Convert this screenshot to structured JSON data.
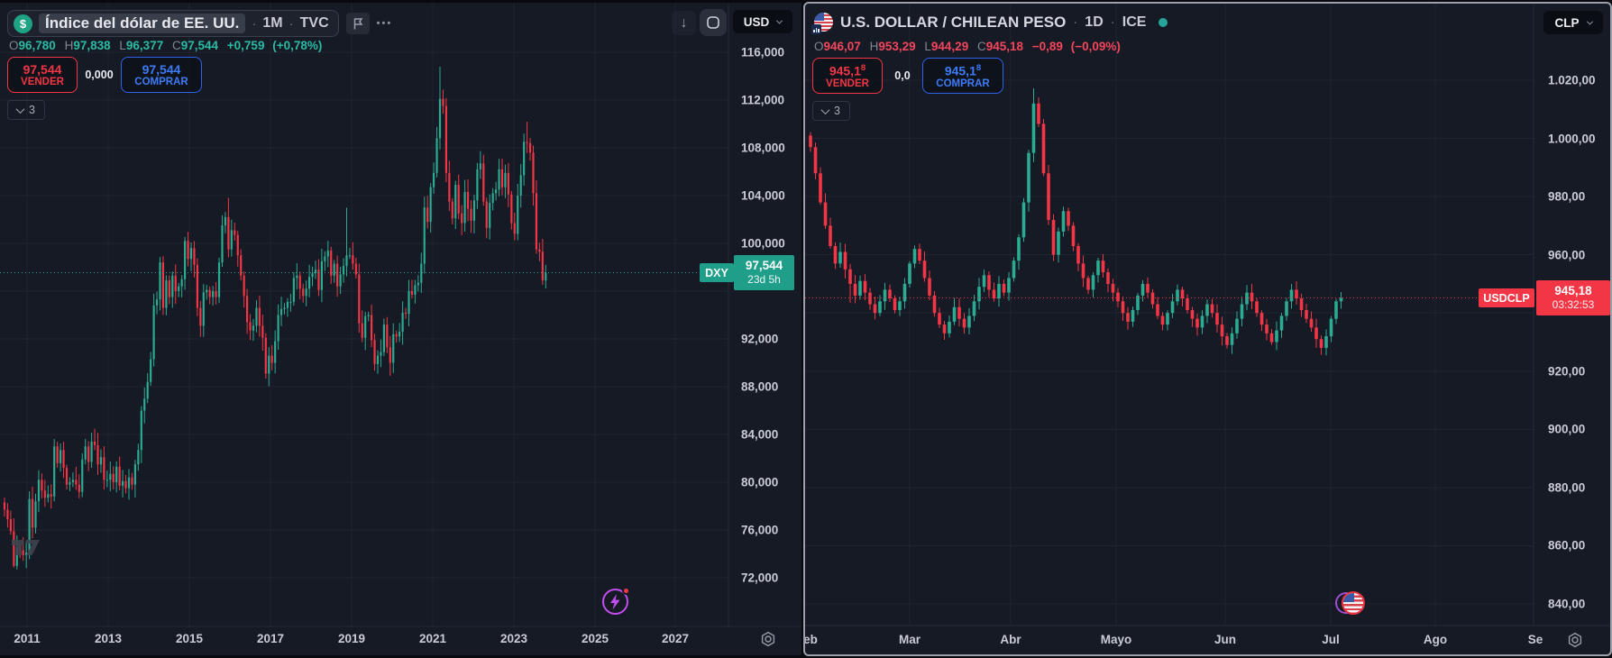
{
  "ui": {
    "sep": "·",
    "icons": {
      "dollar_coin": "$",
      "arrow_down": "↓",
      "menu_dots": "•••"
    }
  },
  "colors": {
    "background": "#151a25",
    "up": "#2bab92",
    "down": "#f23645",
    "teal_badge": "#1f9e8a",
    "red_badge": "#f23645",
    "sell_red": "#f23645",
    "buy_blue": "#3e7bf7",
    "text_up": "#2abba4",
    "text_down": "#f5465c",
    "axis_text": "#c9ccd4"
  },
  "left": {
    "title": "Índice del dólar de EE. UU.",
    "interval": "1M",
    "exchange": "TVC",
    "ohlc": {
      "O": "O",
      "o": "96,780",
      "H": "H",
      "h": "97,838",
      "L": "L",
      "l": "96,377",
      "C": "C",
      "c": "97,544",
      "chg": "+0,759",
      "chg_pct": "(+0,78%)"
    },
    "sell": {
      "price": "97,544",
      "label": "VENDER"
    },
    "spread": "0,000",
    "buy": {
      "price": "97,544",
      "label": "COMPRAR"
    },
    "collapse_count": "3",
    "currency_button": "USD",
    "price_axis": [
      "116,000",
      "112,000",
      "108,000",
      "104,000",
      "100,000",
      "92,000",
      "88,000",
      "84,000",
      "80,000",
      "76,000",
      "72,000"
    ],
    "time_axis": [
      "2011",
      "2013",
      "2015",
      "2017",
      "2019",
      "2021",
      "2023",
      "2025",
      "2027"
    ],
    "last_badge": {
      "symbol": "DXY",
      "price": "97,544",
      "countdown": "23d 5h"
    }
  },
  "right": {
    "title": "U.S. DOLLAR / CHILEAN PESO",
    "interval": "1D",
    "exchange": "ICE",
    "ohlc": {
      "O": "O",
      "o": "946,07",
      "H": "H",
      "h": "953,29",
      "L": "L",
      "l": "944,29",
      "C": "C",
      "c": "945,18",
      "chg": "−0,89",
      "chg_pct": "(−0,09%)"
    },
    "sell": {
      "price_main": "945,1",
      "price_sup": "8",
      "label": "VENDER"
    },
    "spread": "0,0",
    "buy": {
      "price_main": "945,1",
      "price_sup": "8",
      "label": "COMPRAR"
    },
    "collapse_count": "3",
    "currency_button": "CLP",
    "price_axis": [
      "1.020,00",
      "1.000,00",
      "980,00",
      "960,00",
      "920,00",
      "900,00",
      "880,00",
      "860,00",
      "840,00"
    ],
    "time_axis": [
      "eb",
      "Mar",
      "Abr",
      "Mayo",
      "Jun",
      "Jul",
      "Ago",
      "Se"
    ],
    "last_badge": {
      "symbol": "USDCLP",
      "price": "945,18",
      "countdown": "03:32:53"
    }
  },
  "chart_data": [
    {
      "type": "candlestick",
      "symbol": "DXY",
      "title": "Índice del dólar de EE. UU.",
      "exchange": "TVC",
      "interval": "1M (monthly)",
      "x_range": "2011-01 to 2025-07",
      "last_close": 97.544,
      "y_axis": {
        "min": 70.5,
        "max": 118.5,
        "ticks": [
          116,
          112,
          108,
          104,
          100,
          96,
          92,
          88,
          84,
          80,
          76,
          72
        ]
      },
      "closes": [
        77.7,
        76.9,
        75.9,
        73.0,
        74.6,
        74.3,
        73.9,
        74.1,
        78.6,
        76.2,
        78.4,
        80.2,
        79.3,
        78.7,
        79.0,
        78.8,
        83.0,
        81.6,
        82.7,
        81.2,
        79.8,
        80.0,
        80.2,
        79.8,
        79.2,
        81.9,
        83.0,
        81.7,
        83.4,
        83.1,
        81.5,
        82.1,
        80.2,
        80.2,
        80.7,
        80.0,
        81.3,
        79.7,
        80.1,
        79.5,
        80.4,
        79.8,
        81.5,
        82.7,
        86.0,
        87.0,
        88.4,
        90.3,
        94.8,
        95.3,
        98.4,
        94.6,
        96.9,
        95.5,
        97.3,
        96.0,
        96.4,
        97.0,
        100.2,
        98.7,
        99.6,
        98.2,
        94.6,
        93.1,
        95.9,
        96.1,
        95.5,
        96.0,
        95.5,
        98.4,
        101.5,
        102.2,
        99.5,
        101.1,
        100.7,
        99.0,
        97.3,
        95.6,
        93.4,
        92.7,
        93.1,
        94.6,
        93.1,
        92.1,
        89.1,
        90.6,
        90.0,
        91.8,
        94.0,
        94.5,
        94.6,
        95.1,
        95.1,
        97.1,
        97.3,
        96.2,
        95.6,
        96.2,
        97.2,
        97.5,
        97.8,
        96.1,
        98.5,
        98.9,
        99.4,
        97.3,
        98.3,
        96.4,
        97.4,
        98.1,
        99.0,
        99.0,
        98.3,
        97.4,
        93.3,
        92.1,
        93.9,
        94.0,
        91.9,
        89.9,
        90.6,
        90.9,
        93.2,
        91.3,
        90.0,
        92.4,
        92.2,
        92.6,
        94.2,
        94.1,
        96.0,
        95.7,
        96.5,
        96.7,
        98.3,
        103.0,
        101.8,
        104.7,
        105.9,
        108.8,
        112.1,
        111.5,
        105.9,
        103.5,
        102.1,
        104.9,
        102.5,
        101.7,
        104.3,
        102.9,
        101.9,
        103.6,
        106.2,
        106.7,
        103.5,
        101.3,
        103.4,
        104.2,
        104.5,
        106.2,
        104.7,
        105.9,
        104.1,
        101.7,
        100.8,
        104.0,
        105.7,
        108.5,
        108.4,
        107.6,
        104.2,
        99.5,
        99.3,
        96.9,
        97.544
      ],
      "wick_high_overrides": {
        "72": 103.82,
        "110": 102.99,
        "140": 114.78,
        "168": 110.18
      },
      "wick_low_overrides": {
        "3": 72.86,
        "4": 72.7
      }
    },
    {
      "type": "candlestick",
      "symbol": "USDCLP",
      "title": "U.S. DOLLAR / CHILEAN PESO",
      "exchange": "ICE",
      "interval": "1D (daily)",
      "x_range": "2025-02 to 2025-07",
      "last_close": 945.18,
      "y_axis": {
        "min": 838,
        "max": 1025,
        "ticks": [
          1020,
          1000,
          980,
          960,
          940,
          920,
          900,
          880,
          860,
          840
        ]
      },
      "closes": [
        997,
        988,
        978,
        970,
        963,
        957,
        961,
        955,
        950,
        946,
        951,
        947,
        943,
        940,
        944,
        948,
        945,
        941,
        944,
        950,
        957,
        962,
        958,
        952,
        946,
        940,
        936,
        933,
        937,
        942,
        938,
        935,
        939,
        944,
        949,
        953,
        948,
        945,
        950,
        947,
        952,
        958,
        966,
        978,
        995,
        1012,
        1005,
        988,
        972,
        960,
        968,
        975,
        970,
        963,
        957,
        952,
        948,
        953,
        958,
        954,
        950,
        947,
        944,
        940,
        937,
        941,
        946,
        950,
        947,
        943,
        939,
        936,
        940,
        944,
        948,
        945,
        941,
        938,
        935,
        939,
        943,
        940,
        936,
        932,
        929,
        933,
        938,
        943,
        947,
        944,
        940,
        936,
        933,
        930,
        934,
        939,
        944,
        948,
        945,
        941,
        938,
        935,
        931,
        928,
        932,
        938,
        944,
        945.18
      ],
      "wick_high_overrides": {
        "45": 1017.2
      },
      "wick_low_overrides": {
        "8": 943.5
      }
    }
  ]
}
